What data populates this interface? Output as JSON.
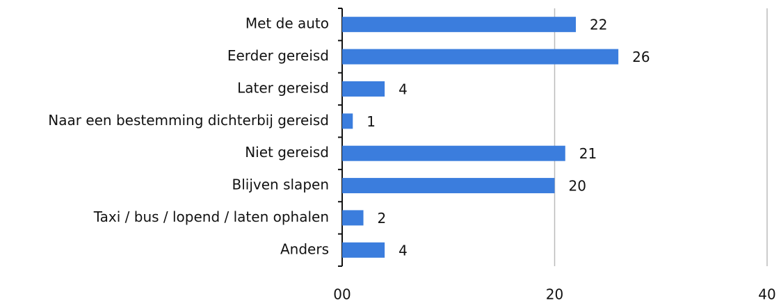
{
  "chart_data": {
    "type": "bar",
    "orientation": "horizontal",
    "categories": [
      "Met de auto",
      "Eerder gereisd",
      "Later gereisd",
      "Naar een bestemming dichterbij gereisd",
      "Niet gereisd",
      "Blijven slapen",
      "Taxi / bus / lopend / laten ophalen",
      "Anders"
    ],
    "values": [
      22,
      26,
      4,
      1,
      21,
      20,
      2,
      4
    ],
    "color": "#3b7ddd",
    "xlim": [
      0,
      40
    ],
    "xticks": [
      {
        "value": 0,
        "label": "00"
      },
      20,
      40
    ],
    "grid": true
  }
}
